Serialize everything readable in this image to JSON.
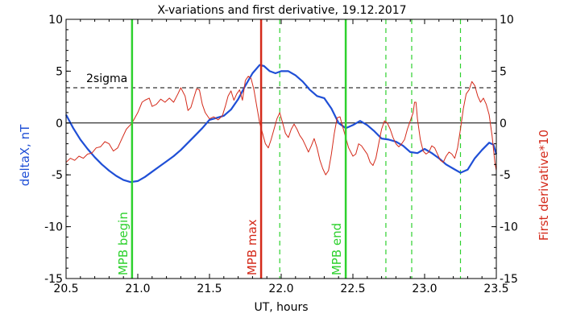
{
  "chart_data": {
    "type": "line",
    "title": "X-variations and first derivative, 19.12.2017",
    "xlabel": "UT, hours",
    "ylabel_left": "deltaX, nT",
    "ylabel_right": "First derivative*10",
    "xlim": [
      20.5,
      23.5
    ],
    "ylim": [
      -15,
      10
    ],
    "xticks": [
      "20.5",
      "21.0",
      "21.5",
      "22.0",
      "22.5",
      "23.0",
      "23.5"
    ],
    "xtick_values": [
      20.5,
      21.0,
      21.5,
      22.0,
      22.5,
      23.0,
      23.5
    ],
    "yticks": [
      "-15",
      "-10",
      "-5",
      "0",
      "5",
      "10"
    ],
    "ytick_values": [
      -15,
      -10,
      -5,
      0,
      5,
      10
    ],
    "colors": {
      "deltaX": "#1f4fd6",
      "derivative": "#d42a1a",
      "mpb_begin_end": "#2ed12e",
      "mpb_max": "#d42a1a",
      "aux_lines": "#2ed12e",
      "axis": "#000000"
    },
    "reference_lines": {
      "zero": 0,
      "two_sigma": 3.4,
      "two_sigma_label": "2sigma"
    },
    "markers": [
      {
        "x": 20.96,
        "label": "MPB begin",
        "color": "#2ed12e"
      },
      {
        "x": 21.86,
        "label": "MPB max",
        "color": "#d42a1a"
      },
      {
        "x": 22.45,
        "label": "MPB end",
        "color": "#2ed12e"
      }
    ],
    "dashed_lines_x": [
      21.99,
      22.73,
      22.91,
      23.25
    ],
    "series": [
      {
        "name": "deltaX",
        "axis": "left",
        "points": [
          [
            20.5,
            0.8
          ],
          [
            20.55,
            -0.5
          ],
          [
            20.6,
            -1.6
          ],
          [
            20.65,
            -2.5
          ],
          [
            20.7,
            -3.3
          ],
          [
            20.75,
            -4.0
          ],
          [
            20.8,
            -4.6
          ],
          [
            20.85,
            -5.1
          ],
          [
            20.9,
            -5.5
          ],
          [
            20.95,
            -5.7
          ],
          [
            21.0,
            -5.6
          ],
          [
            21.05,
            -5.2
          ],
          [
            21.1,
            -4.7
          ],
          [
            21.15,
            -4.2
          ],
          [
            21.2,
            -3.7
          ],
          [
            21.25,
            -3.2
          ],
          [
            21.3,
            -2.6
          ],
          [
            21.35,
            -1.9
          ],
          [
            21.4,
            -1.2
          ],
          [
            21.45,
            -0.5
          ],
          [
            21.5,
            0.3
          ],
          [
            21.55,
            0.5
          ],
          [
            21.6,
            0.7
          ],
          [
            21.65,
            1.3
          ],
          [
            21.7,
            2.3
          ],
          [
            21.75,
            3.6
          ],
          [
            21.8,
            4.8
          ],
          [
            21.85,
            5.6
          ],
          [
            21.88,
            5.5
          ],
          [
            21.92,
            5.0
          ],
          [
            21.96,
            4.8
          ],
          [
            22.0,
            5.0
          ],
          [
            22.05,
            5.0
          ],
          [
            22.1,
            4.6
          ],
          [
            22.15,
            4.0
          ],
          [
            22.2,
            3.2
          ],
          [
            22.25,
            2.6
          ],
          [
            22.3,
            2.4
          ],
          [
            22.35,
            1.4
          ],
          [
            22.4,
            0.0
          ],
          [
            22.45,
            -0.5
          ],
          [
            22.5,
            -0.2
          ],
          [
            22.55,
            0.2
          ],
          [
            22.6,
            -0.2
          ],
          [
            22.65,
            -0.8
          ],
          [
            22.7,
            -1.5
          ],
          [
            22.75,
            -1.6
          ],
          [
            22.8,
            -1.8
          ],
          [
            22.85,
            -2.2
          ],
          [
            22.9,
            -2.8
          ],
          [
            22.95,
            -2.9
          ],
          [
            23.0,
            -2.5
          ],
          [
            23.05,
            -2.9
          ],
          [
            23.1,
            -3.4
          ],
          [
            23.15,
            -4.0
          ],
          [
            23.2,
            -4.4
          ],
          [
            23.25,
            -4.8
          ],
          [
            23.3,
            -4.5
          ],
          [
            23.35,
            -3.4
          ],
          [
            23.4,
            -2.6
          ],
          [
            23.45,
            -1.9
          ],
          [
            23.48,
            -2.1
          ],
          [
            23.5,
            -3.0
          ]
        ]
      },
      {
        "name": "First derivative*10",
        "axis": "right",
        "points": [
          [
            20.5,
            -3.8
          ],
          [
            20.53,
            -3.4
          ],
          [
            20.56,
            -3.6
          ],
          [
            20.59,
            -3.2
          ],
          [
            20.62,
            -3.4
          ],
          [
            20.65,
            -3.0
          ],
          [
            20.68,
            -2.9
          ],
          [
            20.71,
            -2.4
          ],
          [
            20.74,
            -2.3
          ],
          [
            20.77,
            -1.8
          ],
          [
            20.8,
            -2.0
          ],
          [
            20.83,
            -2.7
          ],
          [
            20.86,
            -2.4
          ],
          [
            20.89,
            -1.5
          ],
          [
            20.92,
            -0.6
          ],
          [
            20.96,
            0.0
          ],
          [
            21.0,
            1.0
          ],
          [
            21.03,
            2.0
          ],
          [
            21.05,
            2.2
          ],
          [
            21.08,
            2.4
          ],
          [
            21.1,
            1.6
          ],
          [
            21.13,
            1.8
          ],
          [
            21.16,
            2.3
          ],
          [
            21.19,
            2.0
          ],
          [
            21.22,
            2.4
          ],
          [
            21.25,
            2.0
          ],
          [
            21.28,
            2.8
          ],
          [
            21.3,
            3.4
          ],
          [
            21.33,
            2.6
          ],
          [
            21.35,
            1.2
          ],
          [
            21.37,
            1.5
          ],
          [
            21.39,
            2.4
          ],
          [
            21.41,
            3.3
          ],
          [
            21.43,
            3.2
          ],
          [
            21.45,
            1.8
          ],
          [
            21.47,
            1.0
          ],
          [
            21.5,
            0.4
          ],
          [
            21.53,
            0.6
          ],
          [
            21.56,
            0.3
          ],
          [
            21.59,
            0.7
          ],
          [
            21.61,
            1.6
          ],
          [
            21.63,
            2.6
          ],
          [
            21.65,
            3.1
          ],
          [
            21.67,
            2.2
          ],
          [
            21.69,
            2.8
          ],
          [
            21.71,
            3.2
          ],
          [
            21.73,
            2.2
          ],
          [
            21.75,
            4.1
          ],
          [
            21.77,
            4.5
          ],
          [
            21.79,
            4.3
          ],
          [
            21.81,
            3.2
          ],
          [
            21.83,
            1.6
          ],
          [
            21.85,
            0.0
          ],
          [
            21.87,
            -1.0
          ],
          [
            21.89,
            -2.0
          ],
          [
            21.91,
            -2.4
          ],
          [
            21.93,
            -1.6
          ],
          [
            21.95,
            -0.6
          ],
          [
            21.97,
            0.4
          ],
          [
            21.99,
            1.0
          ],
          [
            22.01,
            0.0
          ],
          [
            22.03,
            -1.0
          ],
          [
            22.05,
            -1.4
          ],
          [
            22.07,
            -0.6
          ],
          [
            22.09,
            -0.1
          ],
          [
            22.11,
            -0.6
          ],
          [
            22.13,
            -1.2
          ],
          [
            22.15,
            -1.6
          ],
          [
            22.17,
            -2.2
          ],
          [
            22.19,
            -2.8
          ],
          [
            22.21,
            -2.2
          ],
          [
            22.23,
            -1.5
          ],
          [
            22.25,
            -2.4
          ],
          [
            22.27,
            -3.6
          ],
          [
            22.29,
            -4.4
          ],
          [
            22.31,
            -5.0
          ],
          [
            22.33,
            -4.6
          ],
          [
            22.35,
            -3.0
          ],
          [
            22.37,
            -1.0
          ],
          [
            22.39,
            0.5
          ],
          [
            22.41,
            0.6
          ],
          [
            22.43,
            -0.4
          ],
          [
            22.45,
            -1.4
          ],
          [
            22.47,
            -2.4
          ],
          [
            22.5,
            -3.2
          ],
          [
            22.52,
            -3.0
          ],
          [
            22.54,
            -2.0
          ],
          [
            22.56,
            -2.2
          ],
          [
            22.58,
            -2.6
          ],
          [
            22.6,
            -3.0
          ],
          [
            22.62,
            -3.8
          ],
          [
            22.64,
            -4.1
          ],
          [
            22.66,
            -3.4
          ],
          [
            22.68,
            -2.0
          ],
          [
            22.7,
            -0.6
          ],
          [
            22.72,
            0.2
          ],
          [
            22.74,
            0.0
          ],
          [
            22.76,
            -0.6
          ],
          [
            22.78,
            -1.4
          ],
          [
            22.8,
            -2.0
          ],
          [
            22.82,
            -2.3
          ],
          [
            22.84,
            -2.0
          ],
          [
            22.86,
            -1.6
          ],
          [
            22.88,
            -0.6
          ],
          [
            22.9,
            0.2
          ],
          [
            22.92,
            1.0
          ],
          [
            22.93,
            2.0
          ],
          [
            22.94,
            2.0
          ],
          [
            22.95,
            0.4
          ],
          [
            22.97,
            -1.6
          ],
          [
            22.99,
            -2.7
          ],
          [
            23.01,
            -3.0
          ],
          [
            23.03,
            -2.8
          ],
          [
            23.05,
            -2.2
          ],
          [
            23.07,
            -2.4
          ],
          [
            23.09,
            -3.0
          ],
          [
            23.11,
            -3.6
          ],
          [
            23.13,
            -3.8
          ],
          [
            23.15,
            -3.2
          ],
          [
            23.17,
            -2.8
          ],
          [
            23.19,
            -3.0
          ],
          [
            23.21,
            -3.4
          ],
          [
            23.23,
            -2.4
          ],
          [
            23.25,
            -0.6
          ],
          [
            23.27,
            1.4
          ],
          [
            23.29,
            2.8
          ],
          [
            23.31,
            3.2
          ],
          [
            23.33,
            4.0
          ],
          [
            23.35,
            3.6
          ],
          [
            23.37,
            2.6
          ],
          [
            23.39,
            2.0
          ],
          [
            23.41,
            2.4
          ],
          [
            23.43,
            1.8
          ],
          [
            23.45,
            0.8
          ],
          [
            23.47,
            -1.2
          ],
          [
            23.49,
            -3.8
          ],
          [
            23.5,
            -4.6
          ]
        ]
      }
    ]
  }
}
